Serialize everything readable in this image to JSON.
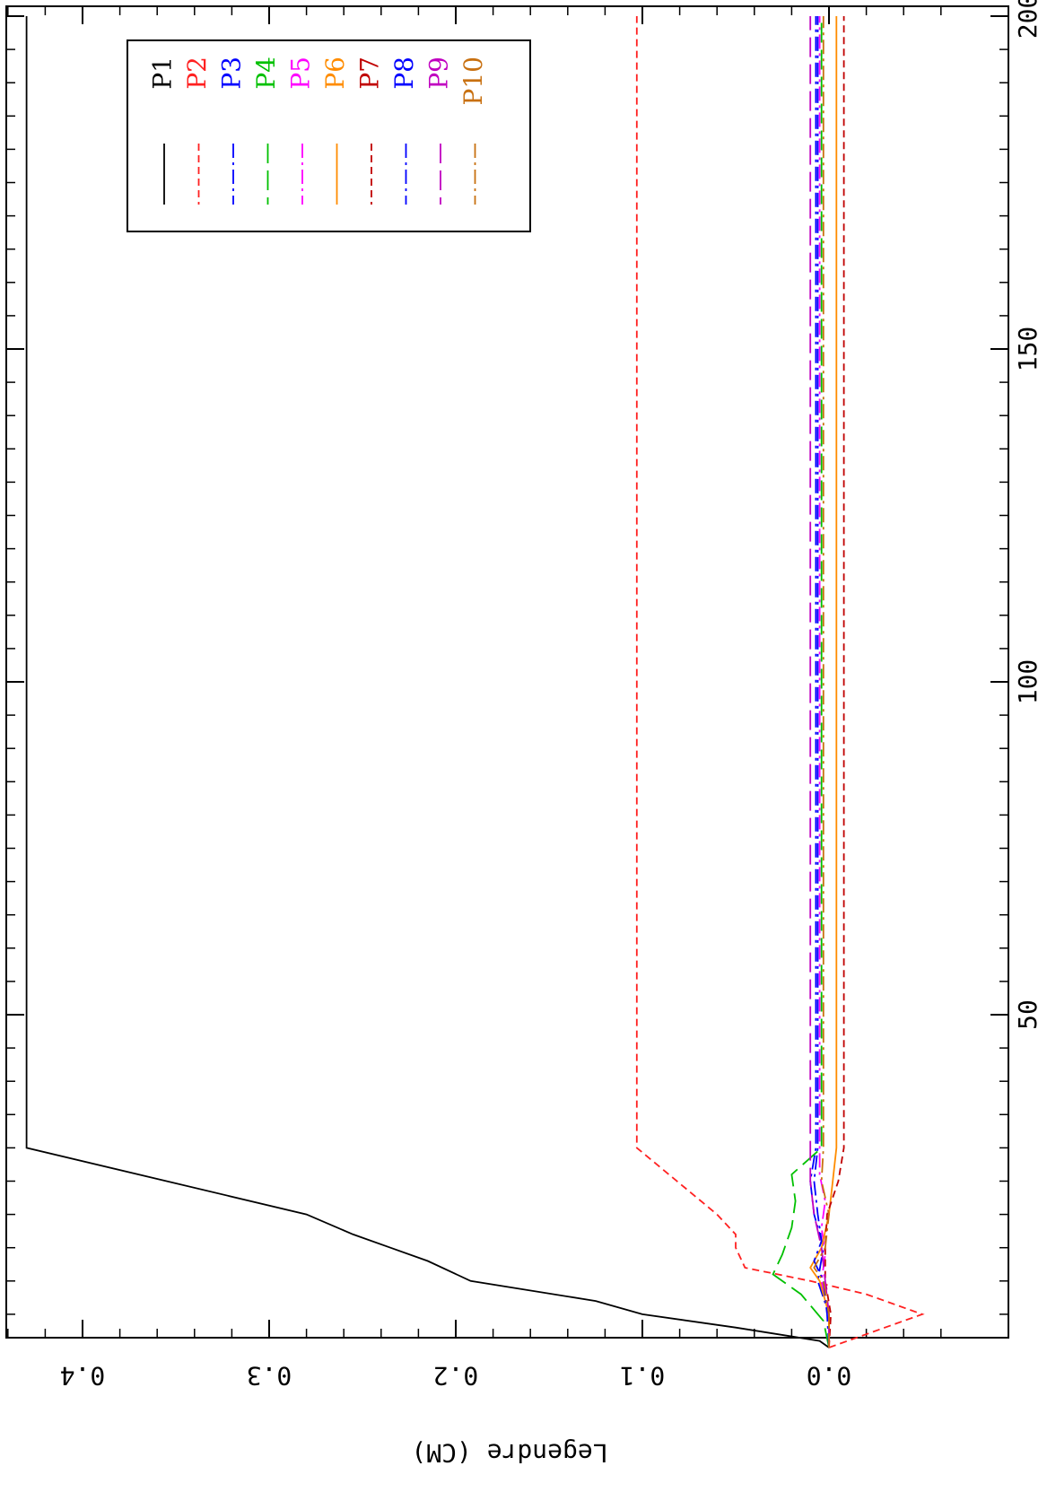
{
  "chart_data": {
    "type": "line",
    "title": "",
    "xlabel": "",
    "ylabel": "Legendre (CM)",
    "xlim": [
      -2,
      200
    ],
    "ylim": [
      -0.06,
      0.44
    ],
    "x_ticks": [
      50,
      100,
      150,
      200
    ],
    "y_ticks": [
      0.0,
      0.1,
      0.2,
      0.3,
      0.4
    ],
    "y_tick_labels": [
      "0.0",
      "0.1",
      "0.2",
      "0.3",
      "0.4"
    ],
    "x_tick_labels": [
      "50",
      "100",
      "150",
      "200"
    ],
    "orientation": "rotated-90-clockwise",
    "grid": false,
    "legend_position": "top-right",
    "series": [
      {
        "name": "P1",
        "color": "#000000",
        "dash": "solid",
        "x": [
          0,
          1,
          3,
          5,
          7,
          10,
          13,
          15,
          17,
          20,
          30,
          200
        ],
        "y": [
          0,
          0.005,
          0.05,
          0.1,
          0.125,
          0.192,
          0.215,
          0.235,
          0.255,
          0.28,
          0.43,
          0.43
        ]
      },
      {
        "name": "P2",
        "color": "#ff2020",
        "dash": "short",
        "x": [
          0,
          3,
          5,
          8,
          10,
          12,
          15,
          17,
          20,
          30,
          200
        ],
        "y": [
          0,
          -0.03,
          -0.05,
          -0.02,
          0.01,
          0.045,
          0.05,
          0.05,
          0.06,
          0.103,
          0.103
        ]
      },
      {
        "name": "P3",
        "color": "#0000ff",
        "dash": "dashdot",
        "x": [
          0,
          5,
          10,
          15,
          20,
          25,
          30,
          200
        ],
        "y": [
          0,
          0,
          0.006,
          0.003,
          0.008,
          0.01,
          0.007,
          0.007
        ]
      },
      {
        "name": "P4",
        "color": "#00c000",
        "dash": "longdash",
        "x": [
          0,
          4,
          8,
          11,
          14,
          18,
          22,
          26,
          30,
          200
        ],
        "y": [
          0,
          0.003,
          0.015,
          0.03,
          0.025,
          0.02,
          0.018,
          0.02,
          0.004,
          0.004
        ]
      },
      {
        "name": "P5",
        "color": "#ff00ff",
        "dash": "dashdot",
        "x": [
          0,
          5,
          10,
          14,
          18,
          22,
          26,
          30,
          200
        ],
        "y": [
          0,
          0,
          0.004,
          0.002,
          0.004,
          0.002,
          0.005,
          0.005,
          0.005
        ]
      },
      {
        "name": "P6",
        "color": "#ff8c00",
        "dash": "solid",
        "x": [
          0,
          5,
          10,
          12,
          15,
          20,
          25,
          30,
          200
        ],
        "y": [
          0,
          0,
          0.005,
          0.01,
          0.004,
          0.0,
          -0.002,
          -0.004,
          -0.004
        ]
      },
      {
        "name": "P7",
        "color": "#c00000",
        "dash": "short",
        "x": [
          0,
          5,
          10,
          15,
          20,
          25,
          30,
          200
        ],
        "y": [
          0,
          -0.001,
          0.002,
          0.002,
          0.001,
          -0.005,
          -0.008,
          -0.008
        ]
      },
      {
        "name": "P8",
        "color": "#0000ff",
        "dash": "dashdot",
        "x": [
          0,
          5,
          10,
          13,
          16,
          20,
          25,
          30,
          200
        ],
        "y": [
          0,
          0.001,
          0.003,
          0.008,
          0.004,
          0.006,
          0.008,
          0.006,
          0.006
        ]
      },
      {
        "name": "P9",
        "color": "#c000c0",
        "dash": "longdash",
        "x": [
          0,
          5,
          10,
          15,
          20,
          25,
          30,
          200
        ],
        "y": [
          0,
          0,
          0.002,
          0.004,
          0.008,
          0.01,
          0.01,
          0.01
        ]
      },
      {
        "name": "P10",
        "color": "#c87010",
        "dash": "dashdot",
        "x": [
          0,
          5,
          10,
          12,
          15,
          20,
          25,
          30,
          200
        ],
        "y": [
          0,
          0,
          0.003,
          0.008,
          0.002,
          0.0,
          0.004,
          0.003,
          0.003
        ]
      }
    ]
  }
}
